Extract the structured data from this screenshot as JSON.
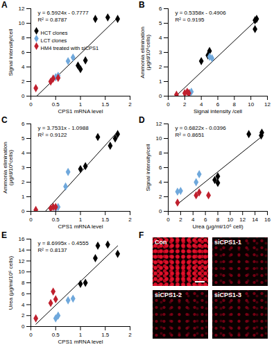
{
  "chart_data": [
    {
      "type": "scatter",
      "title": "A",
      "xlabel": "CPS1 mRNA level",
      "ylabel": "Signal intensity/cell",
      "xlim": [
        0,
        2
      ],
      "xticks": [
        0,
        0.5,
        1,
        1.5,
        2
      ],
      "ylim": [
        0,
        12
      ],
      "yticks": [
        0,
        2,
        4,
        6,
        8,
        10,
        12
      ],
      "legend": "top-left",
      "fit": {
        "slope": 6.5924,
        "intercept": -0.7777,
        "x_range": [
          0.1,
          1.75
        ],
        "equation": "y = 6.5924x - 0.7777",
        "r2_label": "R² = 0.8787"
      },
      "series": [
        {
          "name": "HCT clones",
          "color": "#000000",
          "marker": "diamond",
          "x": [
            0.95,
            1.1,
            1.3,
            1.55,
            1.75,
            1.0
          ],
          "values": [
            4.2,
            4.9,
            10.6,
            10.8,
            10.6,
            3.7
          ]
        },
        {
          "name": "LCT clones",
          "color": "#6fa8dc",
          "marker": "diamond",
          "x": [
            0.5,
            0.55,
            0.75,
            0.85
          ],
          "values": [
            2.6,
            2.8,
            4.8,
            5.3
          ]
        },
        {
          "name": "HM4 treated with siCPS1",
          "color": "#c0202e",
          "marker": "diamond",
          "x": [
            0.1,
            0.4,
            0.45,
            0.55
          ],
          "values": [
            1.1,
            2.0,
            2.4,
            2.5
          ]
        }
      ]
    },
    {
      "type": "scatter",
      "title": "B",
      "xlabel": "Signal intensity /cell",
      "ylabel": "Ammonia elimination\n(μg/d/10⁶cells)",
      "xlim": [
        0,
        12
      ],
      "xticks": [
        0,
        2,
        4,
        6,
        8,
        10,
        12
      ],
      "ylim": [
        0,
        6
      ],
      "yticks": [
        0,
        1,
        2,
        3,
        4,
        5,
        6
      ],
      "fit": {
        "slope": 0.5358,
        "intercept": -0.4906,
        "x_range": [
          1.0,
          10.7
        ],
        "equation": "y = 0.5358x - 0.4906",
        "r2_label": "R² = 0.9195"
      },
      "series": [
        {
          "name": "HCT clones",
          "color": "#000000",
          "marker": "diamond",
          "x": [
            10.5,
            10.7,
            10.5,
            4.0,
            5.0,
            4.8
          ],
          "values": [
            5.2,
            5.3,
            4.6,
            2.4,
            3.1,
            2.8
          ]
        },
        {
          "name": "LCT clones",
          "color": "#6fa8dc",
          "marker": "diamond",
          "x": [
            2.6,
            2.8,
            5.0,
            5.3
          ],
          "values": [
            0.2,
            0.3,
            2.7,
            2.6
          ]
        },
        {
          "name": "HM4 treated with siCPS1",
          "color": "#c0202e",
          "marker": "diamond",
          "x": [
            1.0,
            2.0,
            2.3,
            2.5
          ],
          "values": [
            0.1,
            0.2,
            0.3,
            0.2
          ]
        }
      ]
    },
    {
      "type": "scatter",
      "title": "C",
      "xlabel": "CPS1 mRNA level",
      "ylabel": "Ammonia elimination\n(μg/d/10⁶cells)",
      "xlim": [
        0,
        2
      ],
      "xticks": [
        0,
        0.5,
        1,
        1.5,
        2
      ],
      "ylim": [
        0,
        6
      ],
      "yticks": [
        0,
        1,
        2,
        3,
        4,
        5,
        6
      ],
      "fit": {
        "slope": 3.7531,
        "intercept": -1.0988,
        "x_range": [
          0.3,
          1.75
        ],
        "equation": "y = 3.7531x - 1.0988",
        "r2_label": "R² = 0.9122"
      },
      "series": [
        {
          "name": "HCT clones",
          "color": "#000000",
          "marker": "diamond",
          "x": [
            1.35,
            1.6,
            1.7,
            1.75,
            1.0,
            1.1
          ],
          "values": [
            5.1,
            4.5,
            5.0,
            5.3,
            2.9,
            3.1
          ]
        },
        {
          "name": "LCT clones",
          "color": "#6fa8dc",
          "marker": "diamond",
          "x": [
            0.5,
            0.55,
            0.75,
            0.7
          ],
          "values": [
            0.2,
            0.3,
            2.7,
            1.7
          ]
        },
        {
          "name": "HM4 treated with siCPS1",
          "color": "#c0202e",
          "marker": "diamond",
          "x": [
            0.1,
            0.4,
            0.45,
            0.5
          ],
          "values": [
            0.1,
            0.2,
            0.3,
            0.3
          ]
        }
      ]
    },
    {
      "type": "scatter",
      "title": "D",
      "xlabel": "Urea (μg/ml/10⁶ cell)",
      "ylabel": "Signal intensity/cell",
      "xlim": [
        0,
        16
      ],
      "xticks": [
        0,
        2,
        4,
        6,
        8,
        10,
        12,
        14,
        16
      ],
      "ylim": [
        0,
        12
      ],
      "yticks": [
        0,
        2,
        4,
        6,
        8,
        10,
        12
      ],
      "fit": {
        "slope": 0.6822,
        "intercept": -0.0396,
        "x_range": [
          1.5,
          15.1
        ],
        "equation": "y = 0.6822x - 0.0396",
        "r2_label": "R² = 0.8651"
      },
      "series": [
        {
          "name": "HCT clones",
          "color": "#000000",
          "marker": "diamond",
          "x": [
            13.0,
            15.0,
            15.1,
            8.0,
            8.0,
            7.5
          ],
          "values": [
            10.6,
            10.4,
            10.8,
            3.9,
            4.8,
            4.3
          ]
        },
        {
          "name": "LCT clones",
          "color": "#6fa8dc",
          "marker": "diamond",
          "x": [
            1.5,
            2.0,
            4.5,
            5.0
          ],
          "values": [
            2.7,
            2.8,
            4.0,
            5.1
          ]
        },
        {
          "name": "HM4 treated with siCPS1",
          "color": "#c0202e",
          "marker": "diamond",
          "x": [
            1.5,
            6.5,
            5.0,
            4.5
          ],
          "values": [
            1.2,
            2.2,
            2.6,
            2.2
          ]
        }
      ]
    },
    {
      "type": "scatter",
      "title": "E",
      "xlabel": "CPS1 mRNA level",
      "ylabel": "Urea (μg/ml/10⁶ cells)",
      "xlim": [
        0,
        2
      ],
      "xticks": [
        0,
        0.5,
        1,
        1.5,
        2
      ],
      "ylim": [
        0,
        16
      ],
      "yticks": [
        0,
        2,
        4,
        6,
        8,
        10,
        12,
        14,
        16
      ],
      "fit": {
        "slope": 8.6995,
        "intercept": -0.4555,
        "x_range": [
          0.1,
          1.75
        ],
        "equation": "y = 8.6995x - 0.4555",
        "r2_label": "R² = 0.8137"
      },
      "series": [
        {
          "name": "HCT clones",
          "color": "#000000",
          "marker": "diamond",
          "x": [
            1.35,
            1.55,
            1.75,
            1.0,
            1.1,
            1.3
          ],
          "values": [
            14.8,
            15.0,
            13.3,
            7.8,
            8.0,
            12.5
          ]
        },
        {
          "name": "LCT clones",
          "color": "#6fa8dc",
          "marker": "diamond",
          "x": [
            0.5,
            0.55,
            0.75,
            0.85
          ],
          "values": [
            1.5,
            2.0,
            4.8,
            5.1
          ]
        },
        {
          "name": "HM4 treated with siCPS1",
          "color": "#c0202e",
          "marker": "diamond",
          "x": [
            0.1,
            0.4,
            0.45,
            0.5
          ],
          "values": [
            1.5,
            4.3,
            6.4,
            5.0
          ]
        }
      ]
    }
  ],
  "image_panel": {
    "title": "F",
    "images": [
      "Con",
      "siCPS1-1",
      "siCPS1-2",
      "siCPS1-3"
    ]
  }
}
